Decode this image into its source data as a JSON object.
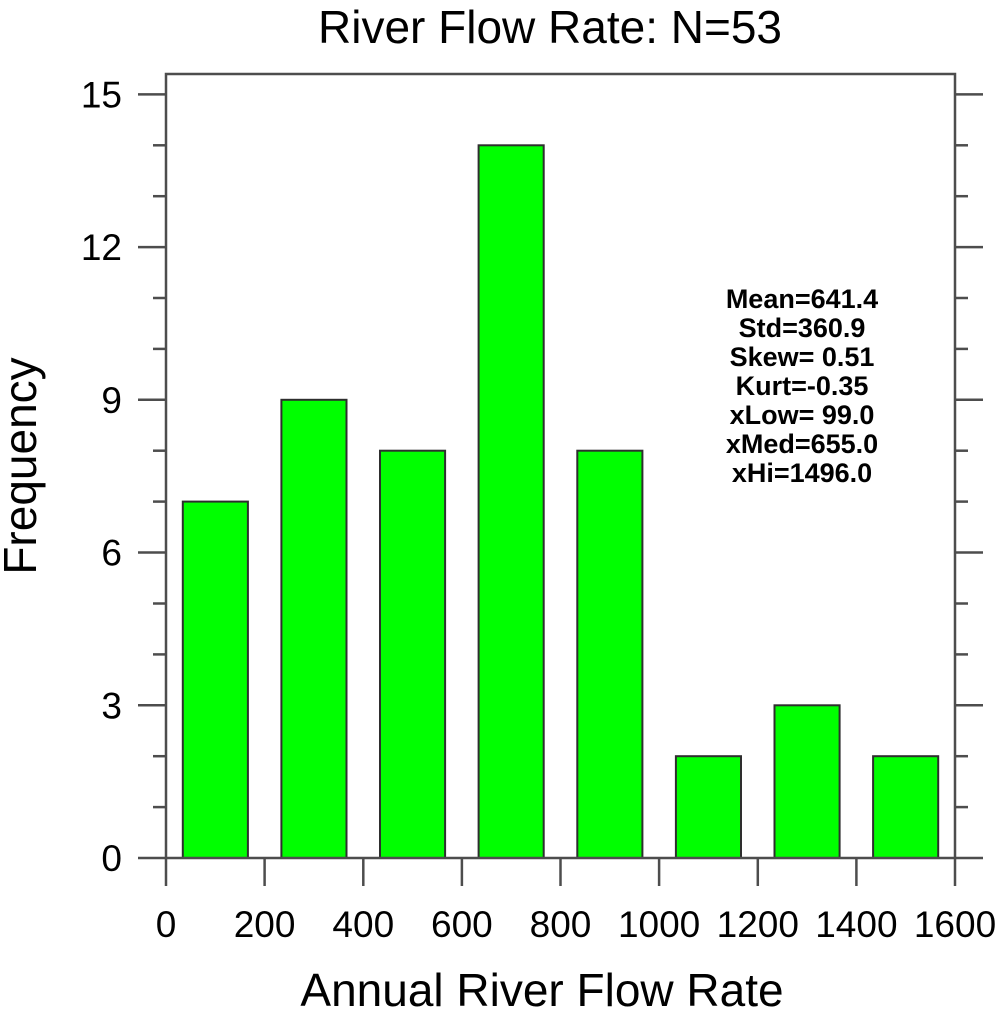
{
  "title": "River Flow Rate: N=53",
  "stats_lines": [
    "Mean=641.4",
    " Std=360.9",
    "Skew= 0.51",
    "Kurt=-0.35",
    "xLow= 99.0",
    "xMed=655.0",
    " xHi=1496.0"
  ],
  "chart_data": {
    "type": "bar",
    "title": "River Flow Rate: N=53",
    "xlabel": "Annual River Flow Rate",
    "ylabel": "Frequency",
    "n": 53,
    "bin_centers": [
      100,
      300,
      500,
      700,
      900,
      1100,
      1300,
      1500
    ],
    "bin_width": 200,
    "bar_width_fraction": 0.66,
    "values": [
      7,
      9,
      8,
      14,
      8,
      2,
      3,
      2
    ],
    "x_ticks_major": [
      0,
      200,
      400,
      600,
      800,
      1000,
      1200,
      1400,
      1600
    ],
    "y_ticks_major": [
      0,
      3,
      6,
      9,
      12,
      15
    ],
    "y_minor_step": 1,
    "xlim": [
      0,
      1600
    ],
    "ylim": [
      0,
      15.4
    ],
    "grid": false,
    "legend": "none",
    "bar_color": "#00ff00",
    "bar_edge_color": "#2e2e2e",
    "axis_color": "#4d4d4d",
    "text_color": "#000000",
    "stats": {
      "mean": 641.4,
      "std": 360.9,
      "skew": 0.51,
      "kurt": -0.35,
      "xlow": 99.0,
      "xmed": 655.0,
      "xhi": 1496.0
    }
  }
}
